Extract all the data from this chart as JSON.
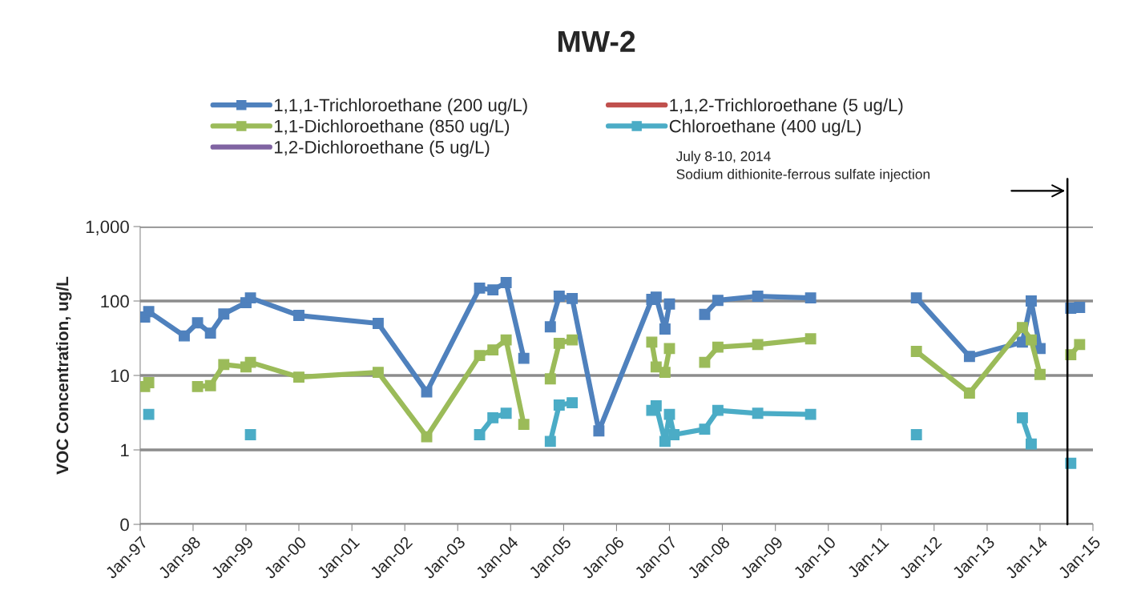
{
  "chart_data": {
    "type": "line",
    "title": "MW-2",
    "ylabel": "VOC Concentration, ug/L",
    "log": "y",
    "grid": "y",
    "legend": "top",
    "line_style": "solid",
    "annotations": [
      "July 8-10, 2014\nSodium dithionite-ferrous sulfate injection"
    ],
    "xlim": [
      "1997-01-01",
      "2015-01-01"
    ],
    "xticks": [
      {
        "value": "1997-01-01",
        "label": "Jan-97"
      },
      {
        "value": "1998-01-01",
        "label": "Jan-98"
      },
      {
        "value": "1999-01-01",
        "label": "Jan-99"
      },
      {
        "value": "2000-01-01",
        "label": "Jan-00"
      },
      {
        "value": "2001-01-01",
        "label": "Jan-01"
      },
      {
        "value": "2002-01-01",
        "label": "Jan-02"
      },
      {
        "value": "2003-01-01",
        "label": "Jan-03"
      },
      {
        "value": "2004-01-01",
        "label": "Jan-04"
      },
      {
        "value": "2005-01-01",
        "label": "Jan-05"
      },
      {
        "value": "2006-01-01",
        "label": "Jan-06"
      },
      {
        "value": "2007-01-01",
        "label": "Jan-07"
      },
      {
        "value": "2008-01-01",
        "label": "Jan-08"
      },
      {
        "value": "2009-01-01",
        "label": "Jan-09"
      },
      {
        "value": "2010-01-01",
        "label": "Jan-10"
      },
      {
        "value": "2011-01-01",
        "label": "Jan-11"
      },
      {
        "value": "2012-01-01",
        "label": "Jan-12"
      },
      {
        "value": "2013-01-01",
        "label": "Jan-13"
      },
      {
        "value": "2014-01-01",
        "label": "Jan-14"
      },
      {
        "value": "2015-01-01",
        "label": "Jan-15"
      }
    ],
    "ylim": [
      0.1,
      1000
    ],
    "yticks": [
      {
        "value": 0.1,
        "label": "0"
      },
      1,
      10,
      100,
      {
        "value": 1000,
        "label": "1,000"
      }
    ],
    "ref_lines": [
      {
        "axis": "x",
        "value": "2014-07-09",
        "color": "#000000"
      }
    ],
    "series": [
      {
        "name": "1,1,1-Trichloroethane (200 ug/L)",
        "color": "#4f81bd",
        "marker": "square",
        "x": [
          "1997-02",
          "1997-03",
          "1997-11",
          "1998-02",
          "1998-05",
          "1998-08",
          "1999-01",
          "1999-02",
          "2000-01",
          "2001-07",
          "2002-06",
          "2003-06",
          "2003-09",
          "2003-12",
          "2004-04",
          "2004-06",
          "2004-10",
          "2004-12",
          "2005-03",
          "2005-09",
          "2006-09",
          "2006-10",
          "2006-12",
          "2007-01",
          "2007-05",
          "2007-09",
          "2007-12",
          "2008-09",
          "2009-09",
          "2010-09",
          "2011-09",
          "2012-09",
          "2013-09",
          "2013-11",
          "2014-01",
          "2014-05",
          "2014-08",
          "2014-10"
        ],
        "values": [
          61,
          72,
          34,
          51,
          37,
          67,
          95,
          110,
          64,
          50,
          6,
          149,
          141,
          177,
          17,
          null,
          45,
          116,
          108,
          1.8,
          105,
          113,
          42,
          91,
          null,
          66,
          102,
          116,
          110,
          null,
          110,
          18,
          28,
          100,
          23,
          null,
          80,
          82
        ]
      },
      {
        "name": "1,1,2-Trichloroethane (5 ug/L)",
        "color": "#c0504d",
        "marker": "none"
      },
      {
        "name": "1,1-Dichloroethane (850 ug/L)",
        "color": "#9bbb59",
        "marker": "square",
        "x": [
          "1997-02",
          "1997-03",
          "1997-08",
          "1998-02",
          "1998-05",
          "1998-08",
          "1999-01",
          "1999-02",
          "2000-01",
          "2001-07",
          "2002-06",
          "2003-06",
          "2003-09",
          "2003-12",
          "2004-04",
          "2004-06",
          "2004-10",
          "2004-12",
          "2005-03",
          "2006-01",
          "2006-09",
          "2006-10",
          "2006-12",
          "2007-01",
          "2007-05",
          "2007-09",
          "2007-12",
          "2008-09",
          "2009-09",
          "2010-09",
          "2011-09",
          "2012-09",
          "2013-09",
          "2013-11",
          "2014-01",
          "2014-05",
          "2014-08",
          "2014-10"
        ],
        "values": [
          7.1,
          8,
          null,
          7.1,
          7.3,
          14,
          13,
          15,
          9.5,
          11,
          1.5,
          18.5,
          22,
          30,
          2.2,
          null,
          9,
          27,
          30,
          null,
          28,
          13,
          11,
          23,
          null,
          15,
          24,
          26,
          31,
          null,
          21,
          5.8,
          44,
          30,
          10.3,
          null,
          19,
          26
        ]
      },
      {
        "name": "Chloroethane (400 ug/L)",
        "color": "#4bacc6",
        "marker": "square",
        "x": [
          "1997-03",
          "1998-01",
          "1999-02",
          "2001-01",
          "2003-06",
          "2003-09",
          "2003-12",
          "2004-06",
          "2004-10",
          "2004-12",
          "2005-03",
          "2006-01",
          "2006-09",
          "2006-10",
          "2006-12",
          "2007-01",
          "2007-02",
          "2007-09",
          "2007-12",
          "2008-09",
          "2009-09",
          "2010-09",
          "2011-09",
          "2012-09",
          "2013-09",
          "2013-11",
          "2014-05",
          "2014-08"
        ],
        "values": [
          3.0,
          null,
          1.6,
          null,
          1.6,
          2.7,
          3.1,
          null,
          1.3,
          4.0,
          4.3,
          null,
          3.4,
          3.9,
          1.3,
          3.0,
          1.6,
          1.9,
          3.4,
          3.1,
          3.0,
          null,
          1.6,
          null,
          2.7,
          1.2,
          null,
          0.66
        ]
      },
      {
        "name": "1,2-Dichloroethane (5 ug/L)",
        "color": "#8064a2",
        "marker": "none"
      }
    ]
  }
}
